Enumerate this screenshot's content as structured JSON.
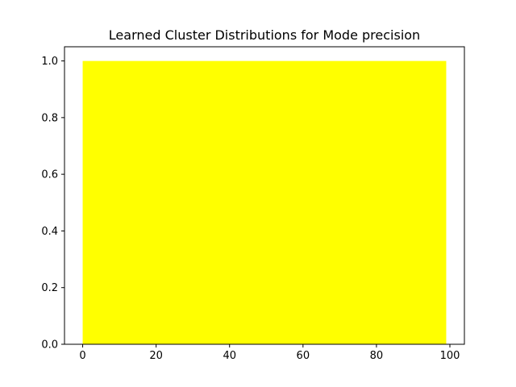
{
  "chart_data": {
    "type": "area",
    "title": "Learned Cluster Distributions for Mode precision",
    "xlabel": "",
    "ylabel": "",
    "xlim": [
      -4.95,
      103.95
    ],
    "ylim": [
      0,
      1.05
    ],
    "xticks": [
      0,
      20,
      40,
      60,
      80,
      100
    ],
    "yticks": [
      0.0,
      0.2,
      0.4,
      0.6,
      0.8,
      1.0
    ],
    "xtick_labels": [
      "0",
      "20",
      "40",
      "60",
      "80",
      "100"
    ],
    "ytick_labels": [
      "0.0",
      "0.2",
      "0.4",
      "0.6",
      "0.8",
      "1.0"
    ],
    "grid": false,
    "series": [
      {
        "x": [
          0,
          99
        ],
        "y": [
          1.0,
          1.0
        ],
        "baseline": 0,
        "color": "#ffff00"
      }
    ]
  }
}
